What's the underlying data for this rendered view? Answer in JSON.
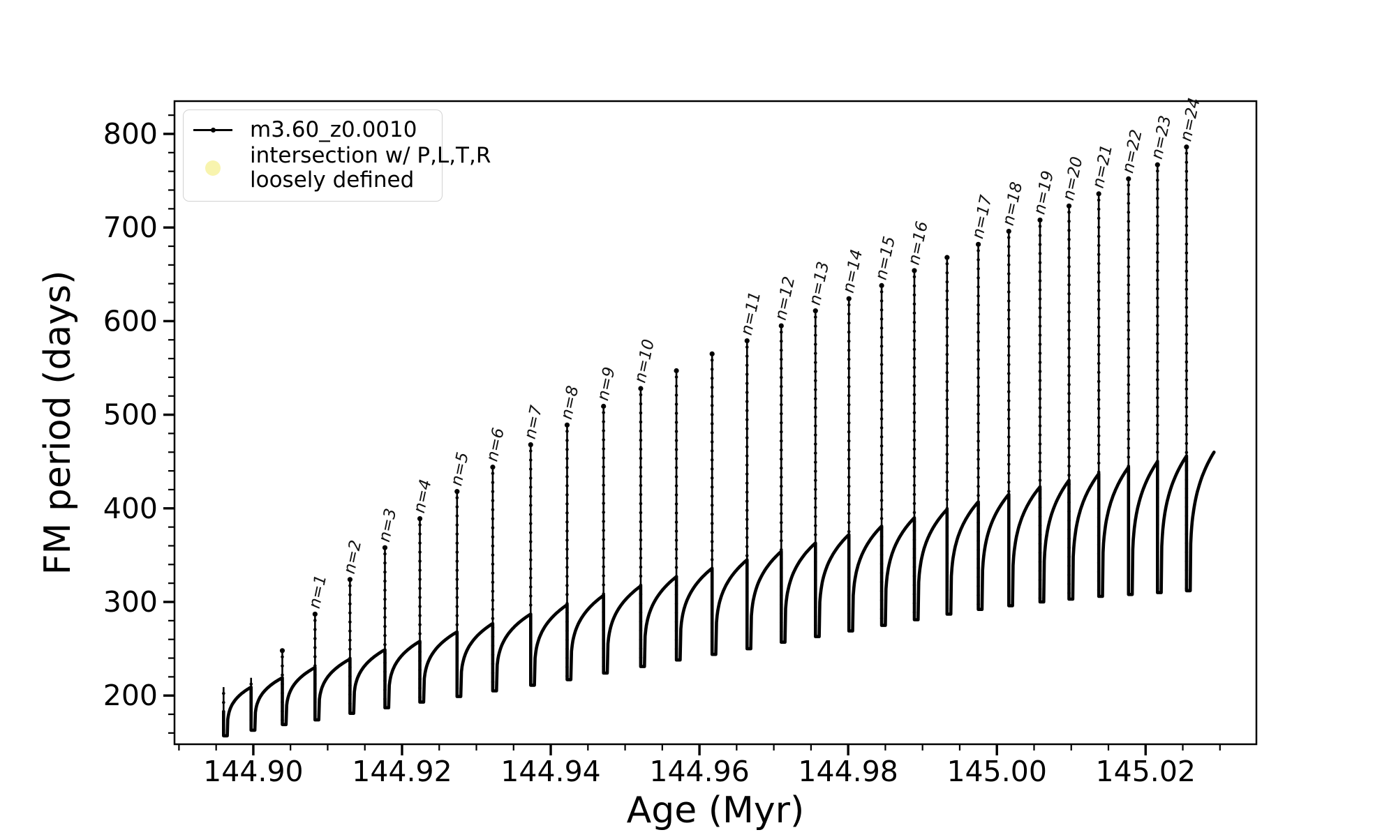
{
  "figure": {
    "axes": {
      "xlabel": "Age (Myr)",
      "ylabel": "FM period (days)",
      "xlim": [
        144.8894,
        145.0349
      ],
      "ylim": [
        148,
        835
      ],
      "xtick_values": [
        144.9,
        144.92,
        144.94,
        144.96,
        144.98,
        145.0,
        145.02
      ],
      "xtick_labels": [
        "144.90",
        "144.92",
        "144.94",
        "144.96",
        "144.98",
        "145.00",
        "145.02"
      ],
      "xminor_step": 0.005,
      "ytick_values": [
        200,
        300,
        400,
        500,
        600,
        700,
        800
      ],
      "ytick_labels": [
        "200",
        "300",
        "400",
        "500",
        "600",
        "700",
        "800"
      ],
      "yminor_step": 20,
      "grid": false
    },
    "legend": {
      "position": "upper left",
      "entries": [
        {
          "marker": "line-dot",
          "color": "#000000",
          "label": "m3.60_z0.0010"
        },
        {
          "marker": "circle",
          "color": "#f8f4ae",
          "label_line1": "intersection w/ P,L,T,R",
          "label_line2": "loosely defined"
        }
      ]
    }
  },
  "chart_data": {
    "type": "line",
    "title": "",
    "xlabel": "Age (Myr)",
    "ylabel": "FM period (days)",
    "xlim": [
      144.8894,
      145.0349
    ],
    "ylim": [
      148,
      835
    ],
    "grid": false,
    "legend_position": "upper left",
    "series_name": "m3.60_z0.0010",
    "line_color": "#000000",
    "intersection_marker_color": "#f8f4ae",
    "start": {
      "x": 144.896,
      "y": 183
    },
    "x_end": 145.0292,
    "end_value": 460,
    "pulses": [
      {
        "x": 144.896,
        "min": 157,
        "peak": null,
        "plateau": 209,
        "label": null
      },
      {
        "x": 144.8997,
        "min": 163,
        "peak": null,
        "plateau": 219,
        "label": null
      },
      {
        "x": 144.9039,
        "min": 169,
        "peak": 248,
        "plateau": 230,
        "label": null
      },
      {
        "x": 144.9083,
        "min": 174,
        "peak": 287,
        "plateau": 239,
        "label": "n=1"
      },
      {
        "x": 144.913,
        "min": 181,
        "peak": 324,
        "plateau": 249,
        "label": "n=2"
      },
      {
        "x": 144.9177,
        "min": 187,
        "peak": 358,
        "plateau": 258,
        "label": "n=3"
      },
      {
        "x": 144.9224,
        "min": 193,
        "peak": 389,
        "plateau": 268,
        "label": "n=4"
      },
      {
        "x": 144.9274,
        "min": 199,
        "peak": 418,
        "plateau": 277,
        "label": "n=5"
      },
      {
        "x": 144.9322,
        "min": 205,
        "peak": 444,
        "plateau": 287,
        "label": "n=6"
      },
      {
        "x": 144.9373,
        "min": 211,
        "peak": 468,
        "plateau": 297,
        "label": "n=7"
      },
      {
        "x": 144.9422,
        "min": 217,
        "peak": 489,
        "plateau": 307,
        "label": "n=8"
      },
      {
        "x": 144.9471,
        "min": 224,
        "peak": 509,
        "plateau": 317,
        "label": "n=9"
      },
      {
        "x": 144.9521,
        "min": 231,
        "peak": 528,
        "plateau": 327,
        "label": "n=10"
      },
      {
        "x": 144.9569,
        "min": 238,
        "peak": 547,
        "plateau": 336,
        "label": null
      },
      {
        "x": 144.9617,
        "min": 244,
        "peak": 565,
        "plateau": 345,
        "label": null
      },
      {
        "x": 144.9664,
        "min": 250,
        "peak": 579,
        "plateau": 354,
        "label": "n=11"
      },
      {
        "x": 144.971,
        "min": 257,
        "peak": 595,
        "plateau": 363,
        "label": "n=12"
      },
      {
        "x": 144.9756,
        "min": 263,
        "peak": 611,
        "plateau": 372,
        "label": "n=13"
      },
      {
        "x": 144.9801,
        "min": 269,
        "peak": 624,
        "plateau": 381,
        "label": "n=14"
      },
      {
        "x": 144.9845,
        "min": 275,
        "peak": 638,
        "plateau": 390,
        "label": "n=15"
      },
      {
        "x": 144.9889,
        "min": 281,
        "peak": 654,
        "plateau": 399,
        "label": "n=16"
      },
      {
        "x": 144.9933,
        "min": 287,
        "peak": 668,
        "plateau": 407,
        "label": null
      },
      {
        "x": 144.9975,
        "min": 292,
        "peak": 682,
        "plateau": 415,
        "label": "n=17"
      },
      {
        "x": 145.0016,
        "min": 296,
        "peak": 696,
        "plateau": 423,
        "label": "n=18"
      },
      {
        "x": 145.0058,
        "min": 300,
        "peak": 708,
        "plateau": 430,
        "label": "n=19"
      },
      {
        "x": 145.0097,
        "min": 303,
        "peak": 723,
        "plateau": 437,
        "label": "n=20"
      },
      {
        "x": 145.0137,
        "min": 306,
        "peak": 736,
        "plateau": 444,
        "label": "n=21"
      },
      {
        "x": 145.0177,
        "min": 308,
        "peak": 752,
        "plateau": 450,
        "label": "n=22"
      },
      {
        "x": 145.0216,
        "min": 310,
        "peak": 767,
        "plateau": 456,
        "label": "n=23"
      },
      {
        "x": 145.0255,
        "min": 312,
        "peak": 786,
        "plateau": 460,
        "label": "n=24"
      }
    ]
  }
}
